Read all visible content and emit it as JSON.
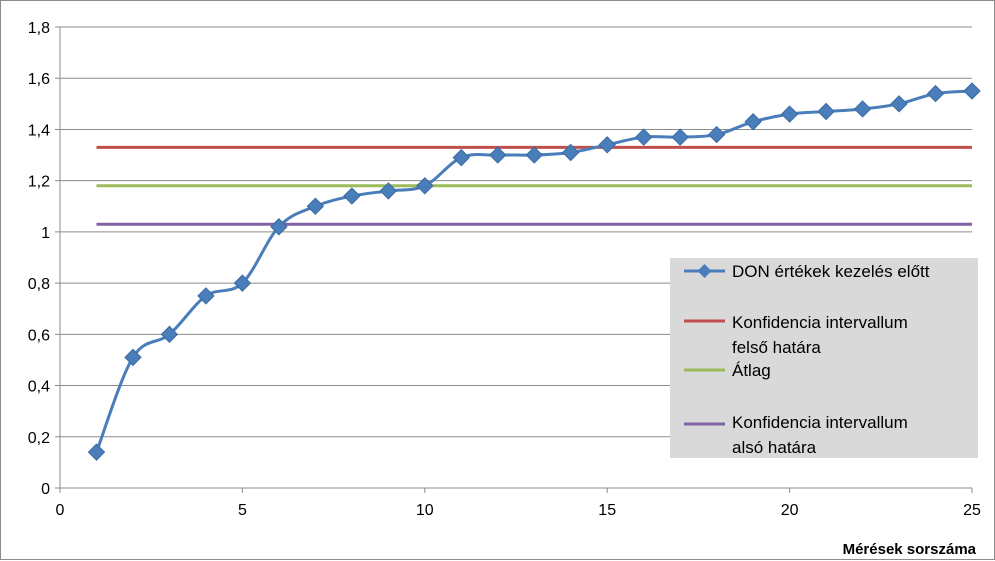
{
  "chart_data": {
    "type": "line",
    "title": "",
    "xlabel": "Mérések sorszáma",
    "ylabel": "",
    "xlim": [
      0,
      25
    ],
    "ylim": [
      0,
      1.8
    ],
    "x_ticks": [
      {
        "value": 0,
        "label": "0"
      },
      {
        "value": 5,
        "label": "5"
      },
      {
        "value": 10,
        "label": "10"
      },
      {
        "value": 15,
        "label": "15"
      },
      {
        "value": 20,
        "label": "20"
      },
      {
        "value": 25,
        "label": "25"
      }
    ],
    "y_ticks": [
      {
        "value": 0,
        "label": "0"
      },
      {
        "value": 0.2,
        "label": "0,2"
      },
      {
        "value": 0.4,
        "label": "0,4"
      },
      {
        "value": 0.6,
        "label": "0,6"
      },
      {
        "value": 0.8,
        "label": "0,8"
      },
      {
        "value": 1.0,
        "label": "1"
      },
      {
        "value": 1.2,
        "label": "1,2"
      },
      {
        "value": 1.4,
        "label": "1,4"
      },
      {
        "value": 1.6,
        "label": "1,6"
      },
      {
        "value": 1.8,
        "label": "1,8"
      }
    ],
    "grid": "horizontal",
    "legend_position": "right",
    "series": [
      {
        "name": "DON értékek kezelés előtt",
        "color": "#4a7ebb",
        "marker": "diamond",
        "smooth": true,
        "x": [
          1,
          2,
          3,
          4,
          5,
          6,
          7,
          8,
          9,
          10,
          11,
          12,
          13,
          14,
          15,
          16,
          17,
          18,
          19,
          20,
          21,
          22,
          23,
          24,
          25
        ],
        "y": [
          0.14,
          0.51,
          0.6,
          0.75,
          0.8,
          1.02,
          1.1,
          1.14,
          1.16,
          1.18,
          1.29,
          1.3,
          1.3,
          1.31,
          1.34,
          1.37,
          1.37,
          1.38,
          1.43,
          1.46,
          1.47,
          1.48,
          1.5,
          1.54,
          1.55
        ]
      },
      {
        "name_lines": [
          "Konfidencia intervallum",
          "felső határa"
        ],
        "color": "#c0504d",
        "x": [
          1,
          25
        ],
        "y": [
          1.33,
          1.33
        ]
      },
      {
        "name": "Átlag",
        "color": "#9bbb59",
        "x": [
          1,
          25
        ],
        "y": [
          1.18,
          1.18
        ]
      },
      {
        "name_lines": [
          "Konfidencia intervallum",
          "alsó határa"
        ],
        "color": "#8064a2",
        "x": [
          1,
          25
        ],
        "y": [
          1.03,
          1.03
        ]
      }
    ]
  }
}
